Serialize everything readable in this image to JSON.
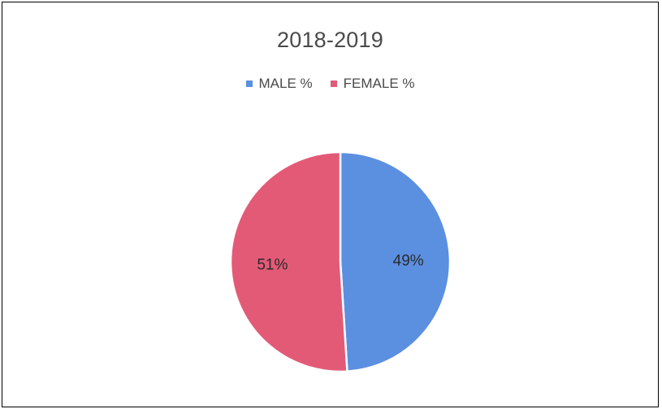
{
  "chart_data": {
    "type": "pie",
    "title": "2018-2019",
    "legend_placement": "top",
    "slices": [
      {
        "name": "MALE %",
        "value": 49,
        "label": "49%",
        "color": "#5b8fe0"
      },
      {
        "name": "FEMALE %",
        "value": 51,
        "label": "51%",
        "color": "#e35a77"
      }
    ]
  }
}
